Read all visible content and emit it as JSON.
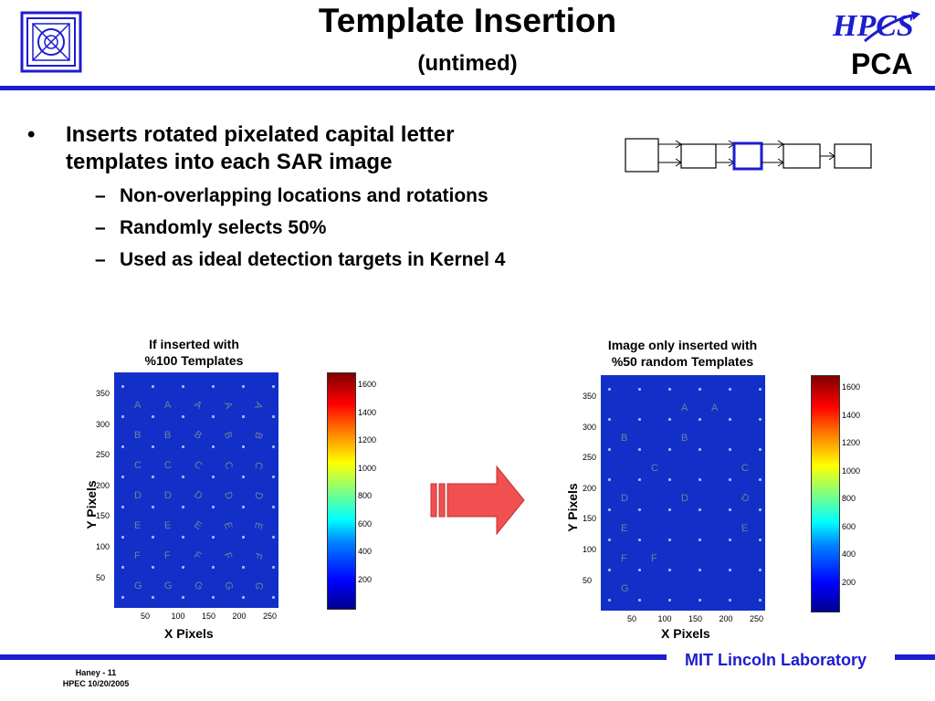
{
  "header": {
    "title": "Template Insertion",
    "subtitle": "(untimed)",
    "logo_right": "HPCS",
    "logo_right_sub": "PCA"
  },
  "bullets": {
    "main": "Inserts rotated pixelated capital letter templates into each SAR image",
    "subs": [
      "Non-overlapping locations and rotations",
      "Randomly selects 50%",
      "Used as ideal detection targets in Kernel 4"
    ]
  },
  "left_figure": {
    "caption_line1": "If inserted with",
    "caption_line2": "%100 Templates",
    "ylabel": "Y Pixels",
    "xlabel": "X Pixels",
    "xticks": [
      "50",
      "100",
      "150",
      "200",
      "250"
    ],
    "yticks": [
      "350",
      "300",
      "250",
      "200",
      "150",
      "100",
      "50"
    ],
    "colorbar_ticks": [
      "1600",
      "1400",
      "1200",
      "1000",
      "800",
      "600",
      "400",
      "200"
    ],
    "letters": [
      "A",
      "B",
      "C",
      "D",
      "E",
      "F",
      "G"
    ]
  },
  "right_figure": {
    "caption_line1": "Image only inserted with",
    "caption_line2": "%50 random Templates",
    "ylabel": "Y Pixels",
    "xlabel": "X Pixels",
    "xticks": [
      "50",
      "100",
      "150",
      "200",
      "250"
    ],
    "yticks": [
      "350",
      "300",
      "250",
      "200",
      "150",
      "100",
      "50"
    ],
    "colorbar_ticks": [
      "1600",
      "1400",
      "1200",
      "1000",
      "800",
      "600",
      "400",
      "200"
    ],
    "letters": [
      "A",
      "B",
      "C",
      "D",
      "E",
      "F",
      "G"
    ]
  },
  "footer": {
    "lab": "MIT Lincoln Laboratory",
    "author": "Haney - 11",
    "event": "HPEC 10/20/2005"
  },
  "colors": {
    "accent_blue": "#1c1cd0",
    "plot_blue": "#1230c8",
    "arrow_red": "#f05050"
  }
}
